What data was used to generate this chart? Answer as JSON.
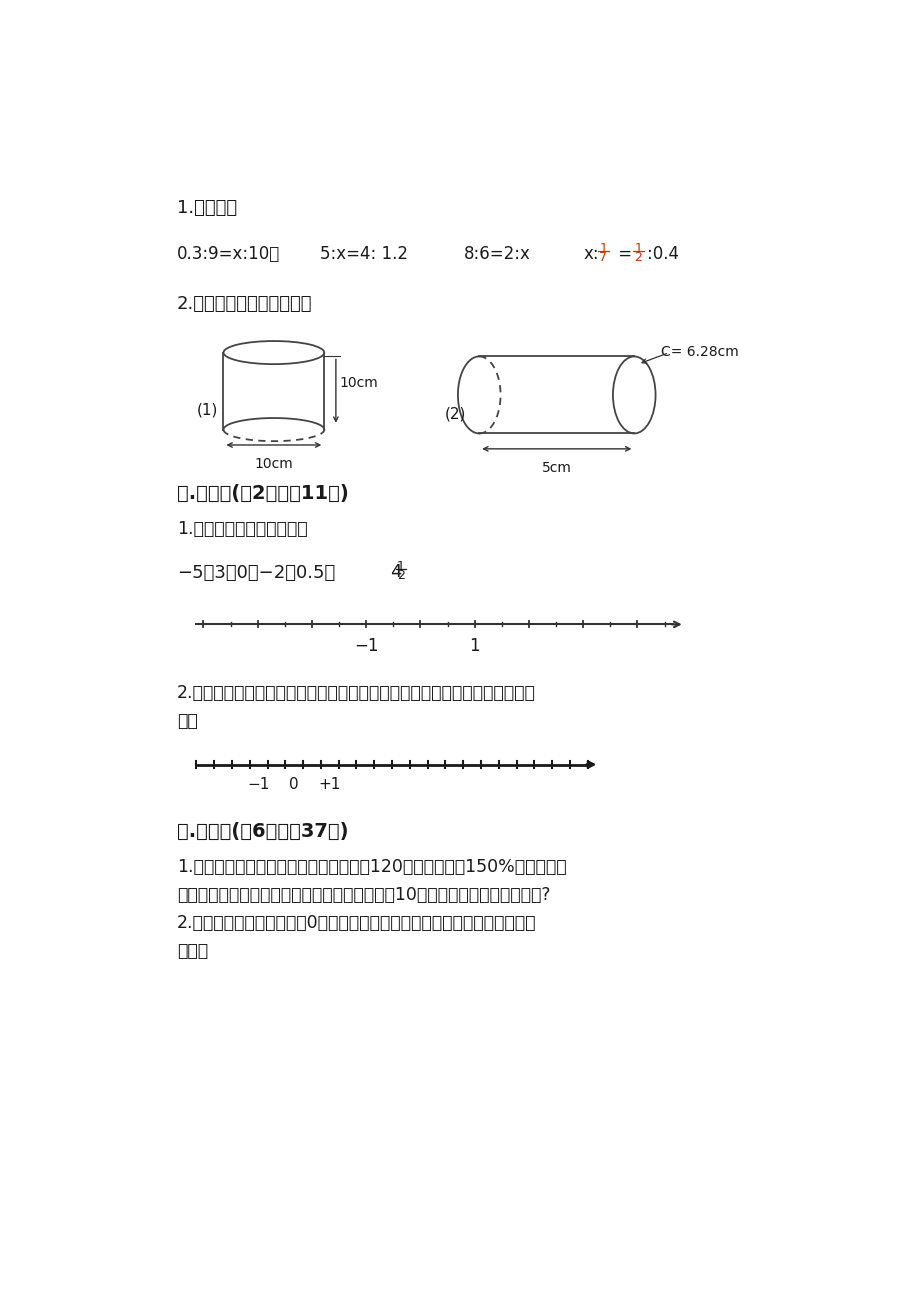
{
  "bg_color": "#ffffff",
  "text_color": "#1a1a1a",
  "title1": "1.解比例。",
  "eq1": "0.3:9=x:10；",
  "eq2": "5:x=4: 1.2",
  "eq3": "8:6=2:x",
  "eq4a": "x:",
  "eq4b": ":0.4",
  "frac_color": "#cc3300",
  "title2": "2.计算下面圆柱的表面积。",
  "lbl1": "(1)",
  "lbl2": "(2)",
  "dim1h": "10cm",
  "dim1w": "10cm",
  "dim2c": "C= 6.28cm",
  "dim2l": "5cm",
  "sec5title": "五.作图题(公2题，公11分)",
  "sec5_1": "1.在直线上表示下列各数。",
  "numlist": "−5，3，0，−2，0.5，",
  "sec5_2": "2.下面的数轴，我们认识的数能用数轴上的点表示，在相应的点上写出相应的",
  "sec5_2b": "数。",
  "sec6title": "六.解答题(公6题，公37分)",
  "p1l1": "1.某服装店卖一种裙子，原来每条售价为120元，是进价的150%。现在店主",
  "p1l2": "计划打折促销，但要保证每条裙子赚的钱不少于10元。问：折扣不能低于几折?",
  "p2l1": "2.某蓄水池的标准水位记为0米，如果用正数表示水面高于标准水位的高度，",
  "p2l2": "那么："
}
